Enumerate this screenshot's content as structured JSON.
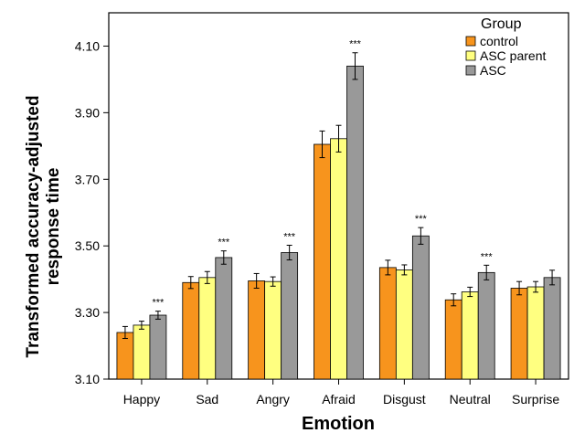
{
  "chart_data": {
    "type": "bar",
    "xlabel": "Emotion",
    "ylabel_lines": [
      "Transformed accuracy-adjusted",
      "response time"
    ],
    "ylim": [
      3.1,
      4.2
    ],
    "yticks": [
      "3.10",
      "3.30",
      "3.50",
      "3.70",
      "3.90",
      "4.10"
    ],
    "ytick_values": [
      3.1,
      3.3,
      3.5,
      3.7,
      3.9,
      4.1
    ],
    "categories": [
      "Happy",
      "Sad",
      "Angry",
      "Afraid",
      "Disgust",
      "Neutral",
      "Surprise"
    ],
    "legend_title": "Group",
    "legend_position": "top-right",
    "grid": false,
    "series": [
      {
        "name": "control",
        "color": "#F7941D",
        "values": [
          3.24,
          3.39,
          3.395,
          3.805,
          3.435,
          3.338,
          3.373
        ],
        "errors": [
          0.018,
          0.018,
          0.022,
          0.04,
          0.022,
          0.018,
          0.02
        ]
      },
      {
        "name": "ASC parent",
        "color": "#FFFF80",
        "values": [
          3.262,
          3.405,
          3.393,
          3.822,
          3.428,
          3.362,
          3.377
        ],
        "errors": [
          0.012,
          0.018,
          0.014,
          0.04,
          0.015,
          0.014,
          0.016
        ]
      },
      {
        "name": "ASC",
        "color": "#999999",
        "values": [
          3.292,
          3.465,
          3.48,
          4.04,
          3.53,
          3.42,
          3.405
        ],
        "errors": [
          0.012,
          0.02,
          0.022,
          0.04,
          0.025,
          0.022,
          0.022
        ]
      }
    ],
    "significance_marker": "***",
    "significant": [
      true,
      true,
      true,
      true,
      true,
      true,
      false
    ]
  }
}
